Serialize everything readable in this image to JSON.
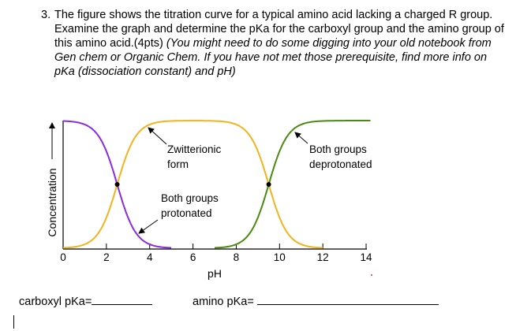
{
  "question": {
    "number": "3.",
    "text": "The figure shows the titration curve for a typical amino acid lacking a charged R group. Examine the graph and determine the pKa for the carboxyl group and the amino group of this amino acid.(4pts)",
    "hint": "(You might need to do some digging into your old notebook from Gen chem or Organic Chem. If you have not met those prerequisite, find more info on pKa (dissociation constant) and pH)"
  },
  "chart_data": {
    "type": "line",
    "xlabel": "pH",
    "ylabel": "Concentration",
    "xlim": [
      0,
      14
    ],
    "ylim": [
      0,
      1
    ],
    "xticks": [
      "0",
      "2",
      "4",
      "6",
      "8",
      "10",
      "12",
      "14"
    ],
    "inflection_points": [
      2.5,
      9.5
    ],
    "series": [
      {
        "name": "Both groups protonated",
        "color": "#8a2be2",
        "x_range": [
          0,
          5
        ],
        "shape": "falling sigmoid at pH 2.5"
      },
      {
        "name": "Zwitterionic form",
        "color": "#f0b41e",
        "x_range": [
          0,
          12
        ],
        "shape": "rise at pH 2.5, fall at pH 9.5"
      },
      {
        "name": "Both groups deprotonated",
        "color": "#4a8a10",
        "x_range": [
          7,
          14.2
        ],
        "shape": "rising sigmoid at pH 9.5"
      }
    ],
    "annotations": {
      "zwitterionic": [
        "Zwitterionic",
        "form"
      ],
      "deprotonated": [
        "Both groups",
        "deprotonated"
      ],
      "protonated": [
        "Both groups",
        "protonated"
      ]
    }
  },
  "answers": {
    "carboxyl_label": "carboxyl pKa=",
    "amino_label": "amino pKa="
  }
}
